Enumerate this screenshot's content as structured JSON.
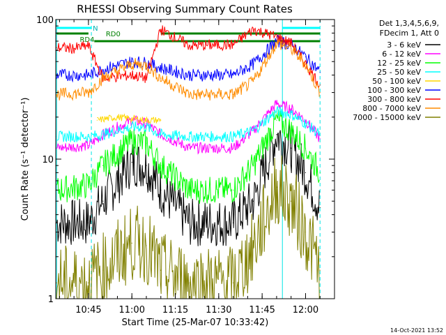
{
  "chart_data": {
    "type": "line",
    "title": "RHESSI Observing Summary Count Rates",
    "xlabel": "Start Time (25-Mar-07 10:33:42)",
    "ylabel": "Count Rate (s⁻¹ detector⁻¹)",
    "x_range": [
      "10:33:42",
      "12:10:00"
    ],
    "x_ticks": [
      "10:45",
      "11:00",
      "11:15",
      "11:30",
      "11:45",
      "12:00"
    ],
    "y_scale": "log",
    "y_range": [
      1,
      100
    ],
    "y_ticks": [
      "1",
      "10",
      "100"
    ],
    "grid": false,
    "legend_position": "top-right",
    "legend_header": [
      "Det 1,3,4,5,6,9,",
      "FDecim 1, Att 0"
    ],
    "annotations": {
      "night_marker": "N",
      "rd0": "RD0",
      "rd4": "RD4"
    },
    "series": [
      {
        "name": "3 - 6 keV",
        "color": "#000000",
        "times": [
          "10:34",
          "10:45",
          "10:50",
          "11:00",
          "11:05",
          "11:10",
          "11:20",
          "11:35",
          "11:42",
          "11:50",
          "11:55",
          "12:00",
          "12:05"
        ],
        "values": [
          3.5,
          3.5,
          5,
          9.5,
          9,
          6,
          3.5,
          3.5,
          5,
          15,
          12,
          8,
          4.5
        ]
      },
      {
        "name": "6 - 12 keV",
        "color": "#ff00ff",
        "times": [
          "10:34",
          "10:45",
          "10:50",
          "11:00",
          "11:05",
          "11:10",
          "11:20",
          "11:35",
          "11:42",
          "11:50",
          "11:55",
          "12:00",
          "12:05"
        ],
        "values": [
          12,
          12.5,
          15,
          19,
          18,
          15,
          12,
          12,
          16,
          25,
          23,
          19,
          14
        ]
      },
      {
        "name": "12 - 25 keV",
        "color": "#00ff00",
        "times": [
          "10:34",
          "10:45",
          "10:50",
          "11:00",
          "11:05",
          "11:10",
          "11:20",
          "11:35",
          "11:42",
          "11:50",
          "11:55",
          "12:00",
          "12:05"
        ],
        "values": [
          6,
          6.5,
          9,
          13.5,
          13,
          9,
          6,
          6,
          9,
          19,
          16,
          12,
          8
        ]
      },
      {
        "name": "25 - 50 keV",
        "color": "#00ffff",
        "times": [
          "10:34",
          "10:45",
          "10:50",
          "11:00",
          "11:05",
          "11:10",
          "11:20",
          "11:35",
          "11:42",
          "11:50",
          "11:55",
          "12:00",
          "12:05"
        ],
        "values": [
          14.5,
          14.5,
          15,
          17,
          17,
          15,
          14.5,
          14.5,
          16,
          22,
          21,
          18,
          15
        ]
      },
      {
        "name": "50 - 100 keV",
        "color": "#ffd700",
        "times": [
          "10:48",
          "10:55",
          "11:05",
          "11:10"
        ],
        "values": [
          19,
          20,
          19,
          19
        ]
      },
      {
        "name": "100 - 300 keV",
        "color": "#0000ff",
        "times": [
          "10:34",
          "10:45",
          "10:50",
          "11:00",
          "11:05",
          "11:10",
          "11:20",
          "11:35",
          "11:42",
          "11:50",
          "11:55",
          "12:00",
          "12:05"
        ],
        "values": [
          40,
          40,
          44,
          50,
          49,
          45,
          40,
          40,
          48,
          70,
          66,
          54,
          42
        ]
      },
      {
        "name": "300 - 800 keV",
        "color": "#ff0000",
        "times": [
          "10:34",
          "10:40",
          "10:45",
          "10:50",
          "11:00",
          "11:05",
          "11:10",
          "11:20",
          "11:35",
          "11:42",
          "11:50",
          "11:55",
          "12:00",
          "12:05"
        ],
        "values": [
          63,
          62,
          65,
          38,
          40,
          38,
          85,
          65,
          66,
          85,
          75,
          68,
          48,
          34
        ]
      },
      {
        "name": "800 - 7000 keV",
        "color": "#ff8c00",
        "times": [
          "10:34",
          "10:45",
          "10:50",
          "11:00",
          "11:05",
          "11:10",
          "11:20",
          "11:35",
          "11:42",
          "11:50",
          "11:55",
          "12:00",
          "12:05"
        ],
        "values": [
          29,
          30,
          38,
          48,
          47,
          38,
          29,
          29,
          36,
          68,
          62,
          48,
          30
        ]
      },
      {
        "name": "7000 - 15000 keV",
        "color": "#808000",
        "times": [
          "10:34",
          "10:45",
          "10:50",
          "11:00",
          "11:05",
          "11:10",
          "11:20",
          "11:35",
          "11:42",
          "11:50",
          "11:55",
          "12:00",
          "12:05"
        ],
        "values": [
          1.3,
          1.3,
          1.6,
          2.5,
          2.4,
          1.6,
          1.3,
          1.3,
          2.3,
          6.3,
          5,
          3,
          1.6
        ]
      }
    ]
  },
  "footer": {
    "timestamp": "14-Oct-2021 13:52"
  }
}
